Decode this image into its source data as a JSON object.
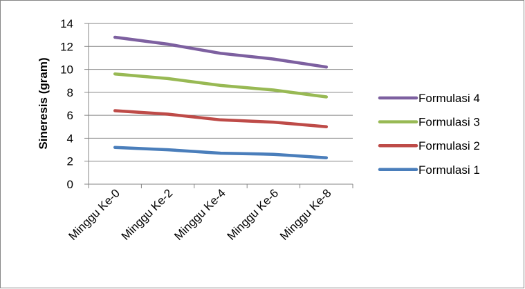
{
  "chart_data": {
    "type": "line",
    "title": "",
    "xlabel": "",
    "ylabel": "Sineresis (gram)",
    "categories": [
      "Minggu Ke-0",
      "Minggu Ke-2",
      "Minggu Ke-4",
      "Minggu Ke-6",
      "Minggu Ke-8"
    ],
    "ylim": [
      0,
      14
    ],
    "yticks": [
      0,
      2,
      4,
      6,
      8,
      10,
      12,
      14
    ],
    "grid": true,
    "legend_position": "right",
    "series": [
      {
        "name": "Formulasi 1",
        "color": "#4a7ebb",
        "values": [
          3.2,
          3.0,
          2.7,
          2.6,
          2.3
        ]
      },
      {
        "name": "Formulasi 2",
        "color": "#be4b48",
        "values": [
          6.4,
          6.1,
          5.6,
          5.4,
          5.0
        ]
      },
      {
        "name": "Formulasi 3",
        "color": "#98b954",
        "values": [
          9.6,
          9.2,
          8.6,
          8.2,
          7.6
        ]
      },
      {
        "name": "Formulasi 4",
        "color": "#7d60a0",
        "values": [
          12.8,
          12.2,
          11.4,
          10.9,
          10.2
        ]
      }
    ],
    "legend_order": [
      "Formulasi 4",
      "Formulasi 3",
      "Formulasi 2",
      "Formulasi 1"
    ]
  }
}
